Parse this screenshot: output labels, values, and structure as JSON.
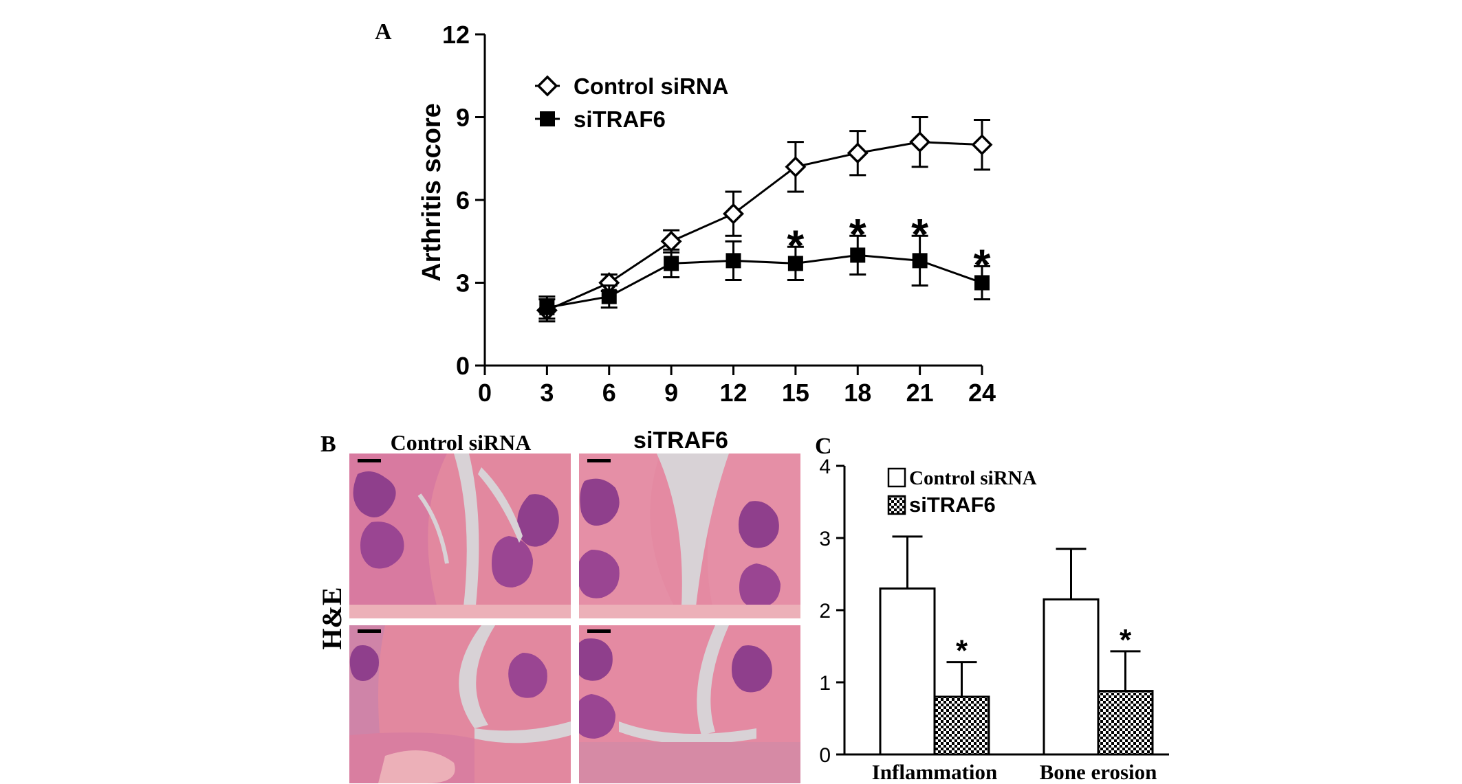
{
  "panels": {
    "a": {
      "letter": "A"
    },
    "b": {
      "letter": "B",
      "col_left": "Control siRNA",
      "col_right": "siTRAF6",
      "row_label": "H&E"
    },
    "c": {
      "letter": "C"
    }
  },
  "chart_data": [
    {
      "panel": "A",
      "type": "line",
      "title": "",
      "xlabel": "",
      "ylabel": "Arthritis score",
      "xlim": [
        0,
        24
      ],
      "ylim": [
        0,
        12
      ],
      "xticks": [
        0,
        3,
        6,
        9,
        12,
        15,
        18,
        21,
        24
      ],
      "yticks": [
        0,
        3,
        6,
        9,
        12
      ],
      "grid": false,
      "legend": "top-left",
      "x": [
        3,
        6,
        9,
        12,
        15,
        18,
        21,
        24
      ],
      "series": [
        {
          "name": "Control siRNA",
          "marker": "open-diamond",
          "y": [
            2.0,
            3.0,
            4.5,
            5.5,
            7.2,
            7.7,
            8.1,
            8.0
          ],
          "error": [
            0.4,
            0.3,
            0.4,
            0.8,
            0.9,
            0.8,
            0.9,
            0.9
          ]
        },
        {
          "name": "siTRAF6",
          "marker": "filled-square",
          "y": [
            2.1,
            2.5,
            3.7,
            3.8,
            3.7,
            4.0,
            3.8,
            3.0
          ],
          "error": [
            0.4,
            0.4,
            0.5,
            0.7,
            0.6,
            0.7,
            0.9,
            0.6
          ]
        }
      ],
      "significance": [
        {
          "x": 15,
          "label": "*"
        },
        {
          "x": 18,
          "label": "*"
        },
        {
          "x": 21,
          "label": "*"
        },
        {
          "x": 24,
          "label": "*"
        }
      ]
    },
    {
      "panel": "C",
      "type": "bar",
      "title": "",
      "xlabel": "",
      "ylabel": "",
      "ylim": [
        0,
        4
      ],
      "yticks": [
        0,
        1,
        2,
        3,
        4
      ],
      "grid": false,
      "legend": "top-left",
      "categories": [
        "Inflammation",
        "Bone erosion"
      ],
      "series": [
        {
          "name": "Control siRNA",
          "fill": "open",
          "values": [
            2.3,
            2.15
          ],
          "error": [
            0.72,
            0.7
          ]
        },
        {
          "name": "siTRAF6",
          "fill": "checkered",
          "values": [
            0.8,
            0.88
          ],
          "error": [
            0.48,
            0.55
          ]
        }
      ],
      "significance": [
        {
          "category": "Inflammation",
          "series": "siTRAF6",
          "label": "*"
        },
        {
          "category": "Bone erosion",
          "series": "siTRAF6",
          "label": "*"
        }
      ]
    }
  ],
  "colors": {
    "ink": "#000000",
    "tissue_pink": "#e2889f",
    "tissue_light": "#ecb0b8",
    "cell_purple": "#8f3f8c",
    "cartilage_grey": "#d8d2d6"
  }
}
